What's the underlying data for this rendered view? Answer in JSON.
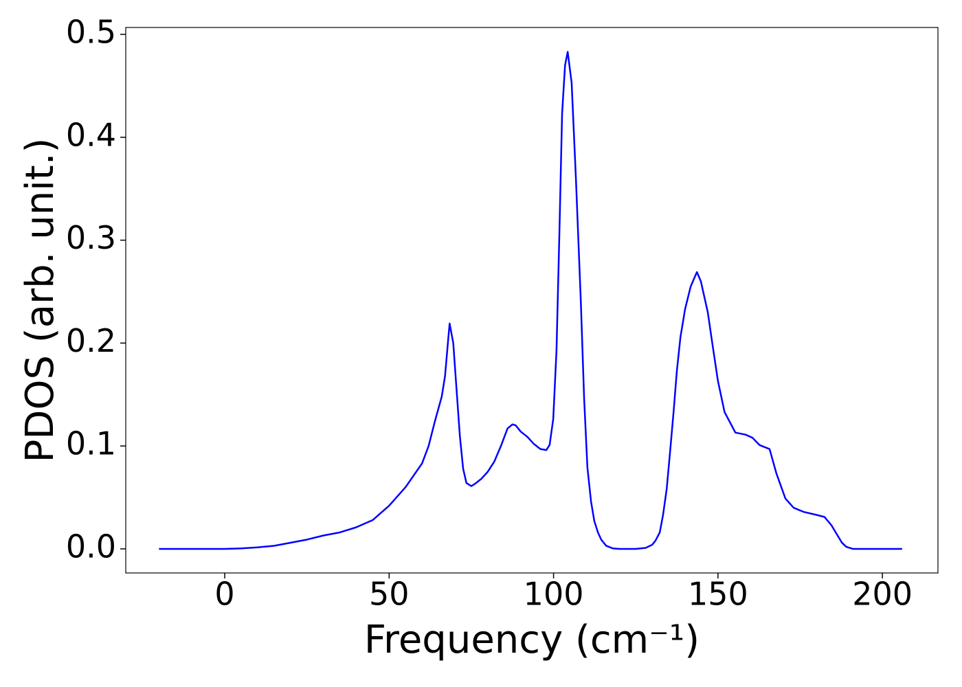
{
  "chart_data": {
    "type": "line",
    "xlabel": "Frequency (cm⁻¹)",
    "ylabel": "PDOS (arb. unit.)",
    "xlim": [
      -30.1,
      216.9
    ],
    "ylim": [
      -0.0234,
      0.5067
    ],
    "xticks": [
      0,
      50,
      100,
      150,
      200
    ],
    "yticks": [
      {
        "value": 0,
        "label": "0.0"
      },
      0.1,
      0.2,
      0.3,
      0.4,
      0.5
    ],
    "x": [
      -20,
      -10,
      0,
      5,
      10,
      15,
      20,
      25,
      30,
      35,
      40,
      45,
      50,
      55,
      60,
      62,
      64,
      66,
      67,
      68,
      68.4,
      69.5,
      70.5,
      71.5,
      72.5,
      73.5,
      75,
      76,
      78,
      80,
      82,
      84,
      86,
      87.5,
      88.5,
      90,
      92,
      94,
      96,
      97.8,
      98.8,
      99.9,
      100.9,
      101.8,
      102.6,
      103.5,
      104.3,
      105.5,
      106.8,
      108.3,
      109.3,
      110.3,
      111.4,
      112.4,
      113.5,
      114.5,
      116,
      118,
      120,
      125,
      128,
      130,
      131,
      132.3,
      133.3,
      134.4,
      135.4,
      136.5,
      137.5,
      138.6,
      140,
      141.7,
      143.6,
      144.8,
      146.9,
      148.5,
      150,
      152,
      155.3,
      158.4,
      160.5,
      162.6,
      165.7,
      167.8,
      170.5,
      173,
      176,
      180,
      182.4,
      184.5,
      186,
      187.7,
      189,
      191,
      195,
      206
    ],
    "series": [
      {
        "color": "#0000ff",
        "values": [
          0,
          0,
          0,
          0.0005,
          0.0015,
          0.003,
          0.006,
          0.009,
          0.013,
          0.016,
          0.021,
          0.028,
          0.042,
          0.06,
          0.083,
          0.1,
          0.125,
          0.148,
          0.168,
          0.205,
          0.219,
          0.2,
          0.155,
          0.11,
          0.078,
          0.064,
          0.061,
          0.063,
          0.068,
          0.075,
          0.085,
          0.1,
          0.117,
          0.121,
          0.12,
          0.114,
          0.109,
          0.102,
          0.097,
          0.096,
          0.101,
          0.126,
          0.193,
          0.31,
          0.423,
          0.47,
          0.483,
          0.453,
          0.36,
          0.24,
          0.146,
          0.079,
          0.046,
          0.027,
          0.016,
          0.009,
          0.003,
          0.0005,
          0,
          0,
          0.001,
          0.004,
          0.008,
          0.016,
          0.033,
          0.058,
          0.093,
          0.133,
          0.173,
          0.206,
          0.233,
          0.255,
          0.269,
          0.26,
          0.23,
          0.195,
          0.163,
          0.133,
          0.113,
          0.111,
          0.108,
          0.101,
          0.097,
          0.073,
          0.049,
          0.04,
          0.036,
          0.033,
          0.031,
          0.023,
          0.015,
          0.006,
          0.002,
          0,
          0,
          0
        ]
      }
    ]
  }
}
